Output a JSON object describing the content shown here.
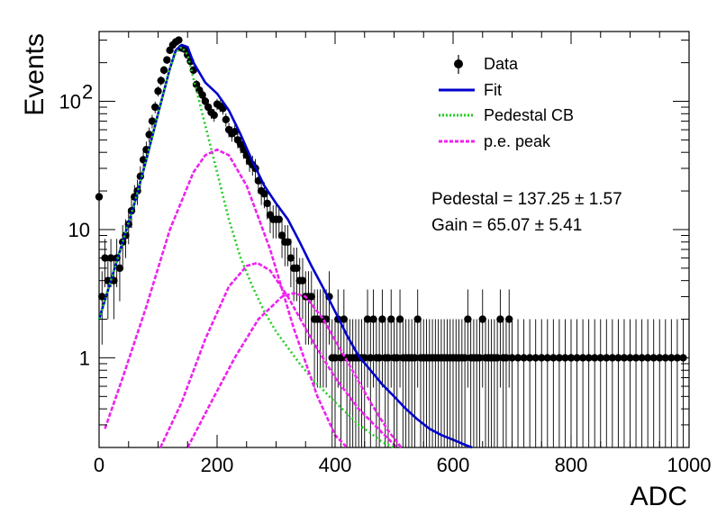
{
  "chart_data": {
    "type": "scatter",
    "title": "",
    "xlabel": "ADC",
    "ylabel": "Events",
    "xlim": [
      0,
      1000
    ],
    "ylim": [
      0.2,
      350
    ],
    "yscale": "log",
    "grid": false,
    "legend_position": "top-right",
    "x_ticks": [
      {
        "value": 0,
        "label": "0"
      },
      {
        "value": 200,
        "label": "200"
      },
      {
        "value": 400,
        "label": "400"
      },
      {
        "value": 600,
        "label": "600"
      },
      {
        "value": 800,
        "label": "800"
      },
      {
        "value": 1000,
        "label": "1000"
      }
    ],
    "y_ticks": [
      {
        "value": 1,
        "label": "1"
      },
      {
        "value": 10,
        "label": "10"
      },
      {
        "value": 100,
        "label": "10",
        "sup": "2"
      }
    ],
    "legend": [
      {
        "label": "Data",
        "style": "marker",
        "color": "#000000"
      },
      {
        "label": "Fit",
        "style": "solid",
        "color": "#0000cc"
      },
      {
        "label": "Pedestal CB",
        "style": "dotted",
        "color": "#22cc22"
      },
      {
        "label": "p.e. peak",
        "style": "dotted",
        "color": "#ee22ee"
      }
    ],
    "annotations": [
      {
        "text": "Pedestal = 137.25 ± 1.57"
      },
      {
        "text": "Gain = 65.07 ± 5.41"
      }
    ],
    "series": [
      {
        "name": "Data",
        "kind": "points",
        "color": "#000000",
        "x": [
          0,
          5,
          10,
          15,
          20,
          25,
          30,
          35,
          40,
          45,
          50,
          55,
          60,
          65,
          70,
          75,
          80,
          85,
          90,
          95,
          100,
          105,
          110,
          115,
          120,
          125,
          130,
          135,
          140,
          145,
          150,
          155,
          160,
          165,
          170,
          175,
          180,
          185,
          190,
          195,
          200,
          205,
          210,
          215,
          220,
          225,
          230,
          235,
          240,
          245,
          250,
          255,
          260,
          265,
          270,
          275,
          280,
          285,
          290,
          295,
          300,
          305,
          310,
          315,
          320,
          325,
          330,
          335,
          340,
          345,
          350,
          355,
          360,
          365,
          370,
          375,
          380,
          385,
          390,
          395,
          400,
          405,
          410,
          415,
          420,
          425,
          430,
          435,
          440,
          445,
          450,
          455,
          460,
          465,
          470,
          475,
          480,
          485,
          490,
          495,
          500,
          505,
          510,
          515,
          520,
          525,
          530,
          535,
          540,
          545,
          550,
          555,
          560,
          565,
          570,
          575,
          580,
          585,
          590,
          595,
          600,
          605,
          610,
          615,
          620,
          625,
          630,
          635,
          640,
          645,
          650,
          655,
          660,
          665,
          670,
          675,
          680,
          685,
          690,
          695,
          700,
          710,
          720,
          730,
          740,
          750,
          760,
          770,
          780,
          790,
          800,
          810,
          820,
          830,
          840,
          850,
          860,
          870,
          880,
          890,
          900,
          910,
          920,
          930,
          940,
          950,
          960,
          970,
          980,
          990
        ],
        "y": [
          18,
          3,
          6,
          4,
          6,
          4,
          6,
          5,
          8,
          9,
          11,
          14,
          18,
          20,
          26,
          35,
          42,
          55,
          70,
          90,
          120,
          145,
          175,
          210,
          250,
          275,
          290,
          300,
          260,
          255,
          230,
          205,
          175,
          135,
          122,
          112,
          100,
          90,
          82,
          78,
          95,
          92,
          88,
          72,
          60,
          56,
          58,
          50,
          46,
          42,
          38,
          34,
          32,
          30,
          24,
          20,
          19,
          16,
          13,
          12,
          12,
          12,
          9,
          8,
          8,
          6,
          5,
          5,
          4,
          4,
          3,
          3,
          3,
          2,
          2,
          2,
          2,
          2,
          3,
          1,
          1,
          2,
          1,
          2,
          1,
          1,
          1,
          1,
          1,
          1,
          1,
          2,
          1,
          2,
          1,
          1,
          2,
          1,
          1,
          2,
          1,
          1,
          2,
          1,
          1,
          1,
          1,
          1,
          2,
          1,
          1,
          1,
          1,
          1,
          1,
          1,
          1,
          1,
          1,
          1,
          1,
          1,
          1,
          1,
          1,
          2,
          1,
          1,
          1,
          1,
          2,
          1,
          1,
          1,
          1,
          1,
          2,
          1,
          1,
          2,
          1,
          1,
          1,
          1,
          1,
          1,
          1,
          1,
          1,
          1,
          1,
          1,
          1,
          1,
          1,
          1,
          1,
          1,
          1,
          1,
          1,
          1,
          1,
          1,
          1,
          1,
          1,
          1,
          1,
          1
        ]
      },
      {
        "name": "Fit",
        "kind": "line",
        "style": "solid",
        "color": "#0000cc",
        "x": [
          0,
          20,
          40,
          60,
          80,
          100,
          120,
          130,
          140,
          150,
          160,
          180,
          200,
          220,
          240,
          260,
          280,
          300,
          320,
          340,
          360,
          380,
          400,
          420,
          440,
          460,
          480,
          500,
          520,
          540,
          560,
          580,
          600,
          620,
          632
        ],
        "y": [
          2,
          4,
          8,
          16,
          35,
          80,
          180,
          250,
          275,
          265,
          200,
          140,
          115,
          85,
          55,
          34,
          22,
          16,
          12,
          8,
          5.2,
          3.5,
          2.3,
          1.5,
          1.03,
          0.8,
          0.62,
          0.5,
          0.4,
          0.33,
          0.28,
          0.25,
          0.23,
          0.21,
          0.2
        ]
      },
      {
        "name": "Pedestal CB",
        "kind": "line",
        "style": "dotted",
        "color": "#22cc22",
        "x": [
          0,
          20,
          40,
          60,
          80,
          100,
          120,
          130,
          140,
          150,
          160,
          180,
          200,
          220,
          240,
          260,
          280,
          300,
          320,
          340,
          360,
          380,
          400,
          420,
          440,
          460,
          480,
          500
        ],
        "y": [
          2,
          4,
          8,
          16,
          35,
          80,
          180,
          240,
          265,
          230,
          150,
          65,
          28,
          12,
          6,
          3.6,
          2.3,
          1.6,
          1.2,
          0.9,
          0.7,
          0.56,
          0.45,
          0.37,
          0.3,
          0.26,
          0.22,
          0.2
        ]
      },
      {
        "name": "p.e. peak",
        "kind": "line",
        "style": "dotted",
        "color": "#ee22ee",
        "x": [
          10,
          40,
          80,
          120,
          160,
          180,
          200,
          220,
          250,
          290,
          330,
          370,
          400,
          420
        ],
        "y": [
          0.28,
          0.7,
          2.5,
          10,
          28,
          38,
          42,
          38,
          22,
          7,
          1.7,
          0.5,
          0.25,
          0.2
        ]
      },
      {
        "name": "p.e. peak 2",
        "kind": "line",
        "style": "dotted",
        "color": "#ee22ee",
        "x": [
          104,
          140,
          180,
          220,
          250,
          268,
          290,
          320,
          360,
          400,
          440,
          480,
          505
        ],
        "y": [
          0.2,
          0.45,
          1.4,
          3.6,
          5.2,
          5.5,
          4.8,
          3.0,
          1.4,
          0.7,
          0.4,
          0.26,
          0.2
        ]
      },
      {
        "name": "p.e. peak 3",
        "kind": "line",
        "style": "dotted",
        "color": "#ee22ee",
        "x": [
          150,
          190,
          230,
          270,
          310,
          330,
          350,
          380,
          420,
          460,
          490,
          512
        ],
        "y": [
          0.2,
          0.45,
          1.0,
          2.0,
          3.0,
          3.2,
          3.0,
          2.0,
          0.95,
          0.45,
          0.27,
          0.2
        ]
      }
    ]
  }
}
